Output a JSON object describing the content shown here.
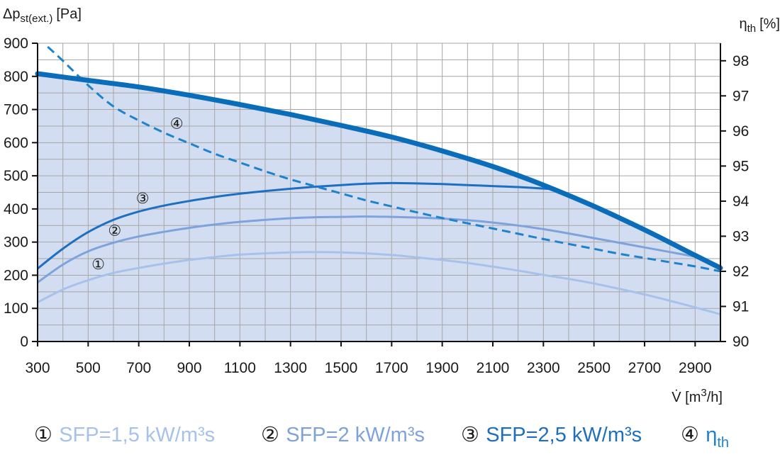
{
  "chart_data": {
    "type": "line",
    "y_label": {
      "main": "Δp",
      "sub": "st(ext.)",
      "unit": "[Pa]"
    },
    "y2_label": {
      "main": "η",
      "sub": "th",
      "unit": "[%]"
    },
    "x_label": {
      "main": "V̇ [m",
      "sup": "3",
      "tail": "/h]"
    },
    "xlim": [
      300,
      3000
    ],
    "ylim": [
      0,
      900
    ],
    "y2lim": [
      90,
      98.5
    ],
    "x_ticks": [
      300,
      500,
      700,
      900,
      1100,
      1300,
      1500,
      1700,
      1900,
      2100,
      2300,
      2500,
      2700,
      2900
    ],
    "y_ticks": [
      0,
      100,
      200,
      300,
      400,
      500,
      600,
      700,
      800,
      900
    ],
    "y2_ticks": [
      90,
      91,
      92,
      93,
      94,
      95,
      96,
      97,
      98
    ],
    "grid": true,
    "area_fill": "#d3ddf1",
    "envelope": {
      "name": "",
      "color": "#0a6dba",
      "x": [
        300,
        500,
        700,
        900,
        1100,
        1300,
        1500,
        1700,
        1900,
        2100,
        2300,
        2500,
        2700,
        2900,
        3000
      ],
      "y": [
        808,
        788,
        768,
        743,
        715,
        685,
        652,
        617,
        575,
        528,
        472,
        408,
        337,
        260,
        222
      ]
    },
    "series": [
      {
        "name": "SFP=1,5 kW/m³s",
        "marker": "①",
        "color": "#a7c2ea",
        "x": [
          300,
          400,
          500,
          600,
          700,
          800,
          900,
          1000,
          1100,
          1200,
          1300,
          1400,
          1500,
          1600,
          1700,
          1800,
          1900,
          2000,
          2100,
          2200,
          2300,
          2400,
          2500,
          2600,
          2700,
          2800,
          2900,
          3000
        ],
        "y": [
          118,
          157,
          185,
          207,
          222,
          235,
          246,
          255,
          262,
          266,
          269,
          270,
          269,
          266,
          261,
          254,
          246,
          237,
          226,
          214,
          201,
          189,
          175,
          159,
          142,
          123,
          103,
          82
        ]
      },
      {
        "name": "SFP=2 kW/m³s",
        "marker": "②",
        "color": "#7ea3dc",
        "x": [
          300,
          400,
          500,
          600,
          700,
          800,
          900,
          1000,
          1100,
          1200,
          1300,
          1400,
          1500,
          1600,
          1700,
          1800,
          1900,
          2000,
          2100,
          2200,
          2300,
          2400,
          2500,
          2600,
          2700,
          2800,
          2900
        ],
        "y": [
          178,
          232,
          272,
          298,
          317,
          331,
          343,
          353,
          361,
          367,
          372,
          375,
          376,
          377,
          376,
          374,
          371,
          366,
          359,
          350,
          339,
          326,
          312,
          298,
          284,
          270,
          256
        ]
      },
      {
        "name": "SFP=2,5 kW/m³s",
        "marker": "③",
        "color": "#1f6fc0",
        "x": [
          300,
          400,
          500,
          600,
          700,
          800,
          900,
          1000,
          1100,
          1200,
          1300,
          1400,
          1500,
          1600,
          1700,
          1800,
          1900,
          2000,
          2100,
          2200,
          2330
        ],
        "y": [
          220,
          280,
          330,
          367,
          392,
          410,
          424,
          436,
          446,
          454,
          461,
          467,
          472,
          476,
          478,
          477,
          475,
          472,
          469,
          466,
          460
        ]
      },
      {
        "name": "η",
        "name_sub": "th",
        "marker": "④",
        "color": "#1e82cc",
        "axis": "right",
        "dash": true,
        "x": [
          340,
          400,
          500,
          600,
          700,
          800,
          900,
          1000,
          1100,
          1200,
          1300,
          1400,
          1500,
          1600,
          1700,
          1800,
          1900,
          2000,
          2100,
          2200,
          2300,
          2400,
          2500,
          2600,
          2700,
          2800,
          2900,
          3000
        ],
        "y": [
          98.4,
          98.0,
          97.3,
          96.7,
          96.3,
          95.95,
          95.65,
          95.35,
          95.1,
          94.85,
          94.62,
          94.42,
          94.22,
          94.02,
          93.85,
          93.68,
          93.52,
          93.37,
          93.22,
          93.07,
          92.92,
          92.78,
          92.64,
          92.5,
          92.38,
          92.26,
          92.14,
          92.0
        ]
      }
    ],
    "curve_markers": [
      {
        "text": "①",
        "x": 540,
        "y": 237
      },
      {
        "text": "②",
        "x": 605,
        "y": 339
      },
      {
        "text": "③",
        "x": 715,
        "y": 436
      },
      {
        "text": "④",
        "x": 850,
        "y": 662
      }
    ]
  }
}
